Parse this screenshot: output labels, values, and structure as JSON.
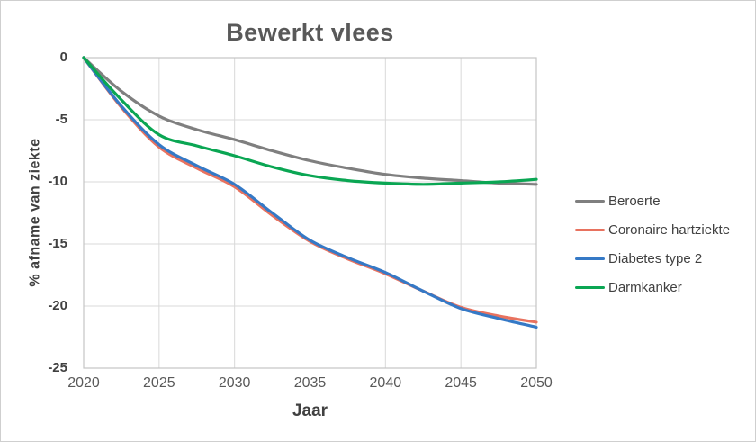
{
  "window": {
    "background": "#ffffff",
    "border_color": "#cfcfcf"
  },
  "chart_data": {
    "type": "line",
    "title": "Bewerkt vlees",
    "xlabel": "Jaar",
    "ylabel": "% afname van ziekte",
    "xlim": [
      2020,
      2050
    ],
    "ylim": [
      -25,
      0
    ],
    "x_ticks": [
      "2020",
      "2025",
      "2030",
      "2035",
      "2040",
      "2045",
      "2050"
    ],
    "y_ticks": [
      "0",
      "-5",
      "-10",
      "-15",
      "-20",
      "-25"
    ],
    "grid": true,
    "gridline_color": "#d9d9d9",
    "axis_line_color": "#c4c4c4",
    "legend_position": "right",
    "x": [
      2020,
      2022.5,
      2025,
      2027.5,
      2030,
      2032.5,
      2035,
      2037.5,
      2040,
      2042.5,
      2045,
      2047.5,
      2050
    ],
    "series": [
      {
        "name": "Beroerte",
        "color": "#7f7f7f",
        "values": [
          0,
          -2.7,
          -4.7,
          -5.8,
          -6.6,
          -7.5,
          -8.3,
          -8.9,
          -9.4,
          -9.7,
          -9.9,
          -10.1,
          -10.2
        ]
      },
      {
        "name": "Coronaire hartziekte",
        "color": "#e8725f",
        "values": [
          0,
          -4.0,
          -7.2,
          -8.9,
          -10.4,
          -12.7,
          -14.8,
          -16.2,
          -17.4,
          -18.8,
          -20.1,
          -20.8,
          -21.3
        ]
      },
      {
        "name": "Diabetes type 2",
        "color": "#3579c6",
        "values": [
          0,
          -3.9,
          -7.0,
          -8.7,
          -10.2,
          -12.5,
          -14.7,
          -16.1,
          -17.3,
          -18.8,
          -20.2,
          -21.0,
          -21.7
        ]
      },
      {
        "name": "Darmkanker",
        "color": "#0aa653",
        "values": [
          0,
          -3.4,
          -6.2,
          -7.1,
          -7.9,
          -8.8,
          -9.5,
          -9.9,
          -10.1,
          -10.2,
          -10.1,
          -10.0,
          -9.8
        ]
      }
    ]
  }
}
